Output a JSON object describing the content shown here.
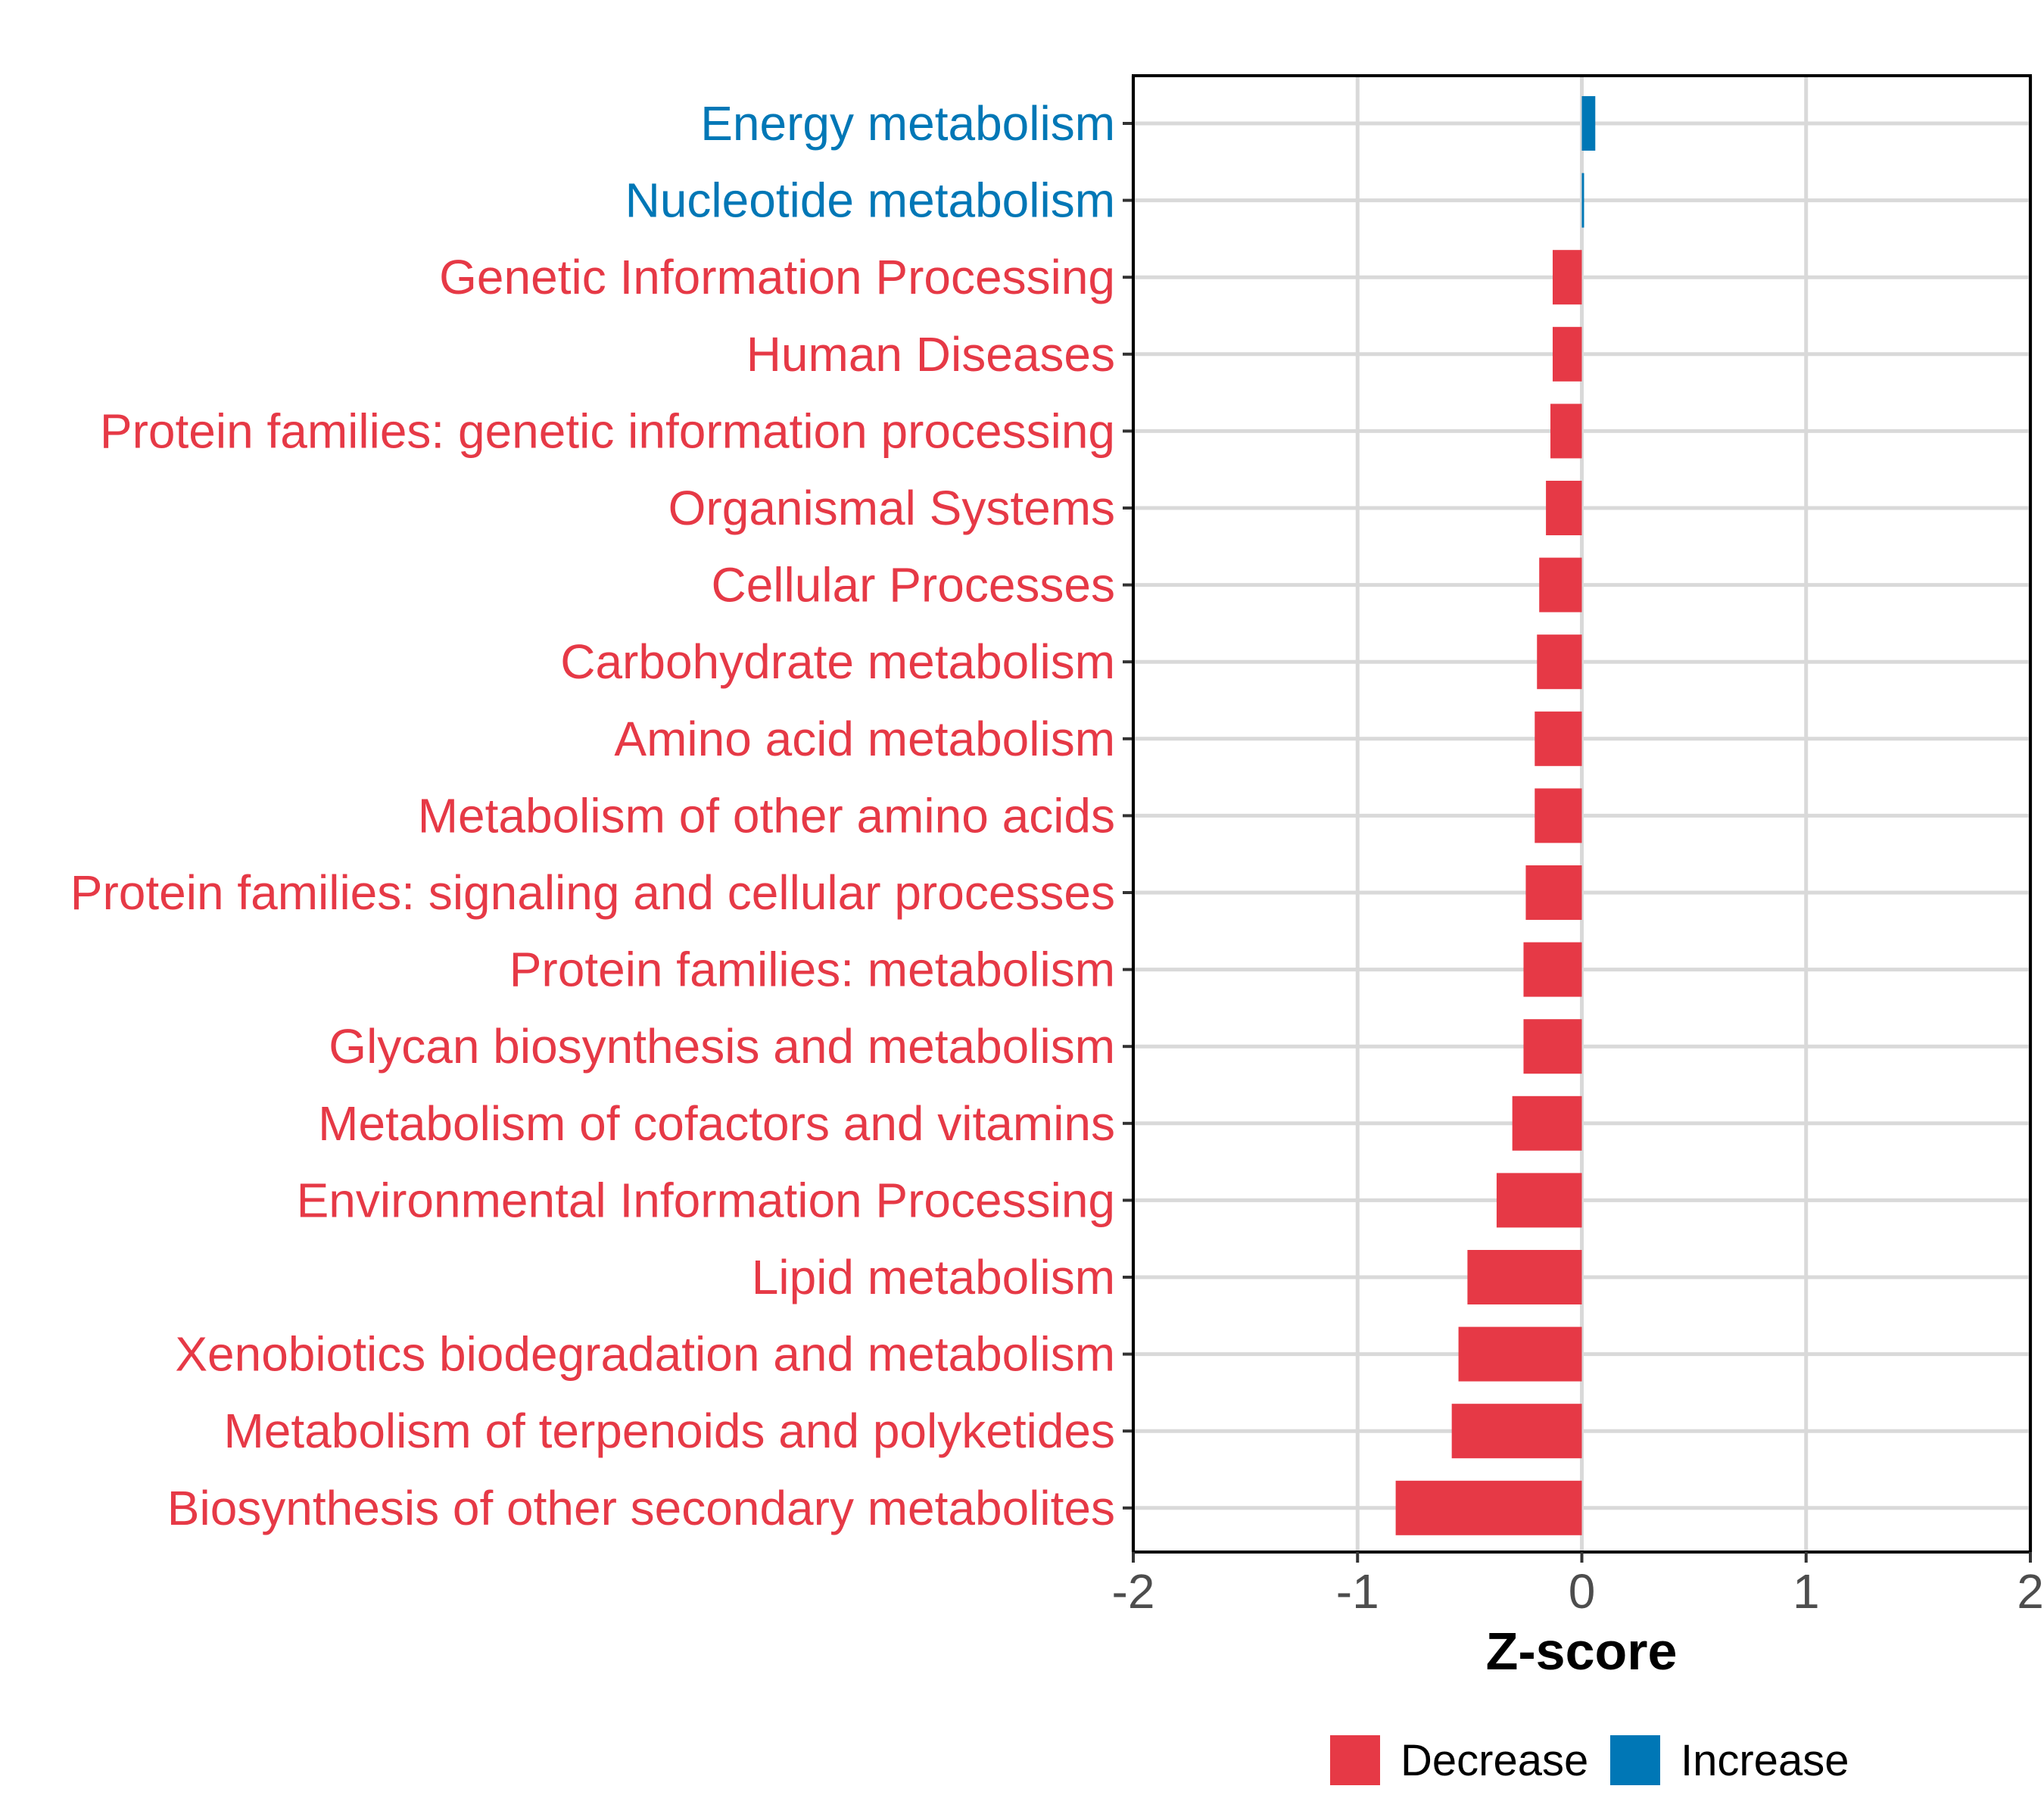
{
  "chart_data": {
    "type": "bar",
    "orientation": "horizontal",
    "title": "",
    "xlabel": "Z-score",
    "ylabel": "",
    "xlim": [
      -2,
      2
    ],
    "x_ticks": [
      "-2",
      "-1",
      "0",
      "1",
      "2"
    ],
    "grid": true,
    "legend_position": "bottom",
    "colors": {
      "Decrease": "#e63946",
      "Increase": "#0077b6"
    },
    "legend": [
      {
        "name": "Decrease",
        "color": "#e63946"
      },
      {
        "name": "Increase",
        "color": "#0077b6"
      }
    ],
    "categories": [
      "Energy metabolism",
      "Nucleotide metabolism",
      "Genetic Information Processing",
      "Human Diseases",
      "Protein families: genetic information processing",
      "Organismal Systems",
      "Cellular Processes",
      "Carbohydrate metabolism",
      "Amino acid metabolism",
      "Metabolism of other amino acids",
      "Protein families: signaling and cellular processes",
      "Protein families: metabolism",
      "Glycan biosynthesis and metabolism",
      "Metabolism of cofactors and vitamins",
      "Environmental Information Processing",
      "Lipid metabolism",
      "Xenobiotics biodegradation and metabolism",
      "Metabolism of terpenoids and polyketides",
      "Biosynthesis of other secondary metabolites"
    ],
    "values": [
      0.06,
      0.01,
      -0.13,
      -0.13,
      -0.14,
      -0.16,
      -0.19,
      -0.2,
      -0.21,
      -0.21,
      -0.25,
      -0.26,
      -0.26,
      -0.31,
      -0.38,
      -0.51,
      -0.55,
      -0.58,
      -0.83
    ],
    "groups": [
      "Increase",
      "Increase",
      "Decrease",
      "Decrease",
      "Decrease",
      "Decrease",
      "Decrease",
      "Decrease",
      "Decrease",
      "Decrease",
      "Decrease",
      "Decrease",
      "Decrease",
      "Decrease",
      "Decrease",
      "Decrease",
      "Decrease",
      "Decrease",
      "Decrease"
    ]
  }
}
